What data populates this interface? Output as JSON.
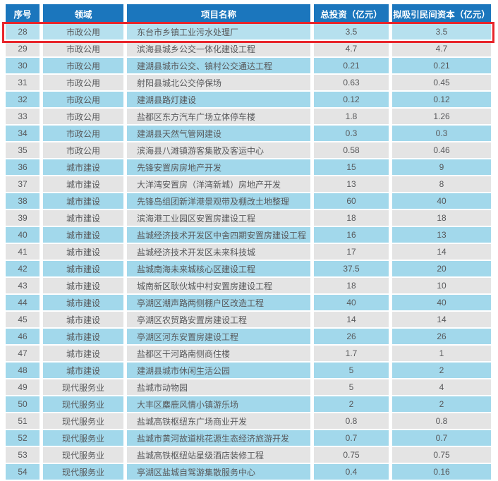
{
  "table": {
    "columns": [
      {
        "key": "no",
        "label": "序号"
      },
      {
        "key": "field",
        "label": "领域"
      },
      {
        "key": "project",
        "label": "项目名称"
      },
      {
        "key": "investment",
        "label": "总投资（亿元）"
      },
      {
        "key": "private_capital",
        "label": "拟吸引民间资本（亿元）"
      }
    ],
    "rows": [
      {
        "no": "28",
        "field": "市政公用",
        "project": "东台市乡镇工业污水处理厂",
        "investment": "3.5",
        "private_capital": "3.5",
        "highlighted": true
      },
      {
        "no": "29",
        "field": "市政公用",
        "project": "滨海县城乡公交一体化建设工程",
        "investment": "4.7",
        "private_capital": "4.7",
        "highlighted": false
      },
      {
        "no": "30",
        "field": "市政公用",
        "project": "建湖县城市公交、镇村公交通达工程",
        "investment": "0.21",
        "private_capital": "0.21",
        "highlighted": false
      },
      {
        "no": "31",
        "field": "市政公用",
        "project": "射阳县城北公交停保场",
        "investment": "0.63",
        "private_capital": "0.45",
        "highlighted": false
      },
      {
        "no": "32",
        "field": "市政公用",
        "project": "建湖县路灯建设",
        "investment": "0.12",
        "private_capital": "0.12",
        "highlighted": false
      },
      {
        "no": "33",
        "field": "市政公用",
        "project": "盐都区东方汽车广场立体停车楼",
        "investment": "1.8",
        "private_capital": "1.26",
        "highlighted": false
      },
      {
        "no": "34",
        "field": "市政公用",
        "project": "建湖县天然气管网建设",
        "investment": "0.3",
        "private_capital": "0.3",
        "highlighted": false
      },
      {
        "no": "35",
        "field": "市政公用",
        "project": "滨海县八滩镇游客集散及客运中心",
        "investment": "0.58",
        "private_capital": "0.46",
        "highlighted": false
      },
      {
        "no": "36",
        "field": "城市建设",
        "project": "先锋安置房房地产开发",
        "investment": "15",
        "private_capital": "9",
        "highlighted": false
      },
      {
        "no": "37",
        "field": "城市建设",
        "project": "大洋湾安置房（洋湾新城）房地产开发",
        "investment": "13",
        "private_capital": "8",
        "highlighted": false
      },
      {
        "no": "38",
        "field": "城市建设",
        "project": "先锋岛组团新洋港景观带及棚改土地整理",
        "investment": "60",
        "private_capital": "40",
        "highlighted": false
      },
      {
        "no": "39",
        "field": "城市建设",
        "project": "滨海港工业园区安置房建设工程",
        "investment": "18",
        "private_capital": "18",
        "highlighted": false
      },
      {
        "no": "40",
        "field": "城市建设",
        "project": "盐城经济技术开发区中舍四期安置房建设工程",
        "investment": "16",
        "private_capital": "13",
        "highlighted": false
      },
      {
        "no": "41",
        "field": "城市建设",
        "project": "盐城经济技术开发区未来科技城",
        "investment": "17",
        "private_capital": "14",
        "highlighted": false
      },
      {
        "no": "42",
        "field": "城市建设",
        "project": "盐城南海未来城核心区建设工程",
        "investment": "37.5",
        "private_capital": "20",
        "highlighted": false
      },
      {
        "no": "43",
        "field": "城市建设",
        "project": "城南新区耿伙城中村安置房建设工程",
        "investment": "18",
        "private_capital": "10",
        "highlighted": false
      },
      {
        "no": "44",
        "field": "城市建设",
        "project": "亭湖区潮声路两侧棚户区改造工程",
        "investment": "40",
        "private_capital": "40",
        "highlighted": false
      },
      {
        "no": "45",
        "field": "城市建设",
        "project": "亭湖区农贸路安置房建设工程",
        "investment": "14",
        "private_capital": "14",
        "highlighted": false
      },
      {
        "no": "46",
        "field": "城市建设",
        "project": "亭湖区河东安置房建设工程",
        "investment": "26",
        "private_capital": "26",
        "highlighted": false
      },
      {
        "no": "47",
        "field": "城市建设",
        "project": "盐都区干河路南侧商住楼",
        "investment": "1.7",
        "private_capital": "1",
        "highlighted": false
      },
      {
        "no": "48",
        "field": "城市建设",
        "project": "建湖县城市休闲生活公园",
        "investment": "5",
        "private_capital": "2",
        "highlighted": false
      },
      {
        "no": "49",
        "field": "现代服务业",
        "project": "盐城市动物园",
        "investment": "5",
        "private_capital": "4",
        "highlighted": false
      },
      {
        "no": "50",
        "field": "现代服务业",
        "project": "大丰区麋鹿风情小镇游乐场",
        "investment": "2",
        "private_capital": "2",
        "highlighted": false
      },
      {
        "no": "51",
        "field": "现代服务业",
        "project": "盐城高铁枢纽东广场商业开发",
        "investment": "0.8",
        "private_capital": "0.8",
        "highlighted": false
      },
      {
        "no": "52",
        "field": "现代服务业",
        "project": "盐城市黄河故道桃花源生态经济旅游开发",
        "investment": "0.7",
        "private_capital": "0.7",
        "highlighted": false
      },
      {
        "no": "53",
        "field": "现代服务业",
        "project": "盐城高铁枢纽站星级酒店装修工程",
        "investment": "0.75",
        "private_capital": "0.75",
        "highlighted": false
      },
      {
        "no": "54",
        "field": "现代服务业",
        "project": "亭湖区盐城自驾游集散服务中心",
        "investment": "0.4",
        "private_capital": "0.16",
        "highlighted": false
      }
    ]
  },
  "colors": {
    "header_bg": "#1b76bd",
    "row_blue": "#a2d8eb",
    "row_gray": "#e4e4e4",
    "row_highlight": "#b6e0ee",
    "highlight_border": "#e8252b",
    "text": "#58595b"
  }
}
